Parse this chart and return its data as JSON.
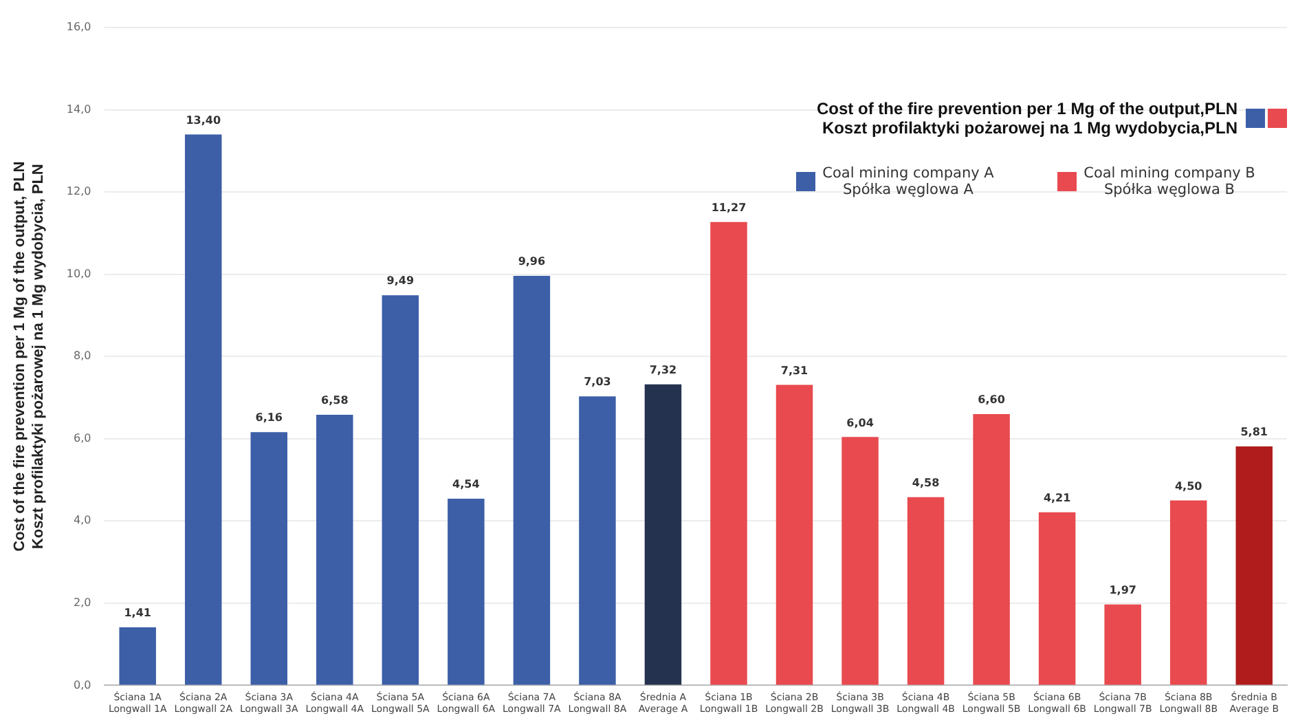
{
  "chart_data": {
    "type": "bar",
    "categories": [
      "Ściana 1A\nLongwall 1A",
      "Ściana 2A\nLongwall 2A",
      "Ściana 3A\nLongwall 3A",
      "Ściana 4A\nLongwall 4A",
      "Ściana 5A\nLongwall 5A",
      "Ściana 6A\nLongwall 6A",
      "Ściana 7A\nLongwall 7A",
      "Ściana 8A\nLongwall 8A",
      "Średnia A\nAverage A",
      "Ściana 1B\nLongwall 1B",
      "Ściana 2B\nLongwall 2B",
      "Ściana 3B\nLongwall 3B",
      "Ściana 4B\nLongwall 4B",
      "Ściana 5B\nLongwall 5B",
      "Ściana 6B\nLongwall 6B",
      "Ściana 7B\nLongwall 7B",
      "Ściana 8B\nLongwall 8B",
      "Średnia B\nAverage B"
    ],
    "ylabel": "Cost of the fire prevention per 1 Mg of the output, PLN\nKoszt profilaktyki pożarowej na 1 Mg wydobycia, PLN",
    "legend_title": "Cost of the fire prevention per 1 Mg of the output,PLN\nKoszt profilaktyki pożarowej na 1 Mg wydobycia,PLN",
    "series": [
      {
        "name": "Coal mining company A\nSpółka węglowa A",
        "color": "#3d5fa8",
        "colors": [
          "#3d5fa8",
          "#3d5fa8",
          "#3d5fa8",
          "#3d5fa8",
          "#3d5fa8",
          "#3d5fa8",
          "#3d5fa8",
          "#3d5fa8",
          "#25324f",
          null,
          null,
          null,
          null,
          null,
          null,
          null,
          null,
          null
        ],
        "values": [
          1.41,
          13.4,
          6.16,
          6.58,
          9.49,
          4.54,
          9.96,
          7.03,
          7.32,
          null,
          null,
          null,
          null,
          null,
          null,
          null,
          null,
          null
        ],
        "value_labels": [
          "1,41",
          "13,40",
          "6,16",
          "6,58",
          "9,49",
          "4,54",
          "9,96",
          "7,03",
          "7,32",
          null,
          null,
          null,
          null,
          null,
          null,
          null,
          null,
          null
        ]
      },
      {
        "name": "Coal mining company B\nSpółka węglowa B",
        "color": "#e84a4f",
        "colors": [
          null,
          null,
          null,
          null,
          null,
          null,
          null,
          null,
          null,
          "#e84a4f",
          "#e84a4f",
          "#e84a4f",
          "#e84a4f",
          "#e84a4f",
          "#e84a4f",
          "#e84a4f",
          "#e84a4f",
          "#b01c1c"
        ],
        "values": [
          null,
          null,
          null,
          null,
          null,
          null,
          null,
          null,
          null,
          11.27,
          7.31,
          6.04,
          4.58,
          6.6,
          4.21,
          1.97,
          4.5,
          5.81
        ],
        "value_labels": [
          null,
          null,
          null,
          null,
          null,
          null,
          null,
          null,
          null,
          "11,27",
          "7,31",
          "6,04",
          "4,58",
          "6,60",
          "4,21",
          "1,97",
          "4,50",
          "5,81"
        ]
      }
    ],
    "ylim": [
      0,
      16
    ],
    "yticks": [
      {
        "value": 0,
        "label": "0,0"
      },
      {
        "value": 2,
        "label": "2,0"
      },
      {
        "value": 4,
        "label": "4,0"
      },
      {
        "value": 6,
        "label": "6,0"
      },
      {
        "value": 8,
        "label": "8,0"
      },
      {
        "value": 10,
        "label": "10,0"
      },
      {
        "value": 12,
        "label": "12,0"
      },
      {
        "value": 14,
        "label": "14,0"
      },
      {
        "value": 16,
        "label": "16,0"
      }
    ],
    "grid": "y",
    "legend": "top right"
  }
}
